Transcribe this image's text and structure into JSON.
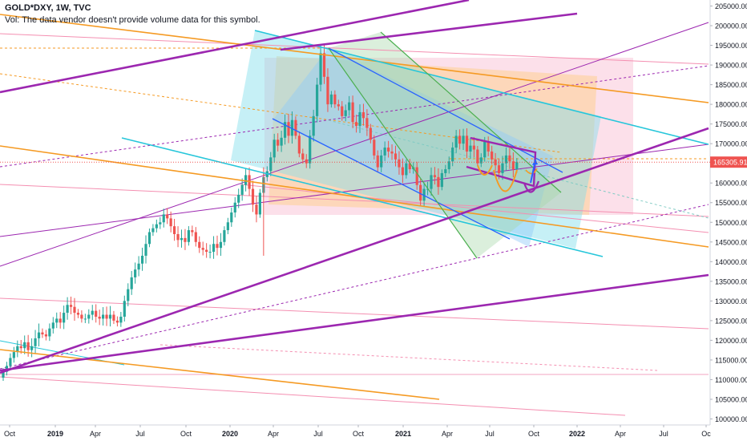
{
  "header": {
    "symbol": "GOLD*DXY, 1W, TVC",
    "volume_note": "Vol: The data vendor doesn't provide volume data for this symbol."
  },
  "colors": {
    "up": "#26a69a",
    "down": "#ef5350",
    "purple": "#9c27b0",
    "orange": "#f59a23",
    "cyan": "#26c6da",
    "blue": "#2962ff",
    "green": "#4caf50",
    "pink": "#f48fb1",
    "price_badge": "#ef5350"
  },
  "chart_data": {
    "type": "candlestick",
    "title": "",
    "xlabel": "",
    "ylabel": "",
    "ylim": [
      97500,
      207500
    ],
    "x_ticks": [
      "Oct",
      "2019",
      "Apr",
      "Jul",
      "Oct",
      "2020",
      "Apr",
      "Jul",
      "Oct",
      "2021",
      "Apr",
      "Jul",
      "Oct",
      "2022",
      "Apr",
      "Jul",
      "Oc"
    ],
    "y_ticks": [
      100000,
      105000,
      110000,
      115000,
      120000,
      125000,
      130000,
      135000,
      140000,
      145000,
      150000,
      155000,
      160000,
      165000,
      170000,
      175000,
      180000,
      185000,
      190000,
      195000,
      200000,
      205000
    ],
    "y_tick_labels": [
      "100000.00",
      "105000.00",
      "110000.00",
      "115000.00",
      "120000.00",
      "125000.00",
      "130000.00",
      "135000.00",
      "140000.00",
      "145000.00",
      "150000.00",
      "155000.00",
      "160000.00",
      "165000.00",
      "170000.00",
      "175000.00",
      "180000.00",
      "185000.00",
      "190000.00",
      "195000.00",
      "200000.00",
      "205000.00"
    ],
    "last_price": 165305.91,
    "last_price_label": "165305.91",
    "close_series": [
      112000,
      113500,
      115500,
      117000,
      118500,
      118000,
      119500,
      117500,
      118500,
      120500,
      122000,
      121500,
      121000,
      123000,
      124500,
      125500,
      124500,
      127000,
      129000,
      128500,
      127000,
      126500,
      125500,
      125500,
      126500,
      127500,
      126000,
      125500,
      126500,
      125500,
      126500,
      125000,
      124500,
      126000,
      130000,
      133000,
      136000,
      138000,
      139500,
      141500,
      144500,
      147500,
      148500,
      149500,
      150000,
      152000,
      151000,
      149000,
      147000,
      145500,
      146000,
      145000,
      148000,
      147500,
      145000,
      143500,
      143000,
      142500,
      142500,
      144500,
      143500,
      145000,
      148000,
      150000,
      152500,
      155000,
      157000,
      159500,
      162000,
      158500,
      154500,
      152000,
      157500,
      161500,
      163000,
      166500,
      171000,
      169500,
      171500,
      175500,
      172000,
      176000,
      172000,
      167500,
      166000,
      165000,
      172000,
      177000,
      185000,
      193000,
      187000,
      180000,
      182500,
      180000,
      179500,
      177000,
      178500,
      180500,
      175500,
      174500,
      178000,
      176500,
      174000,
      171000,
      167000,
      164000,
      167000,
      169000,
      168000,
      167500,
      166000,
      164000,
      162000,
      165000,
      163500,
      164000,
      159500,
      155500,
      158500,
      158500,
      162000,
      161500,
      159000,
      162500,
      163500,
      165500,
      169000,
      172000,
      170000,
      172000,
      168000,
      169500,
      168500,
      165000,
      166500,
      170500,
      168000,
      166000,
      164500,
      162500,
      165000,
      167000,
      165500,
      163500,
      165305.91
    ],
    "annotations": "trend lines, parallel channels, Fibonacci fans, shaded channel regions, cup-and-handle sketches drawn on chart"
  }
}
